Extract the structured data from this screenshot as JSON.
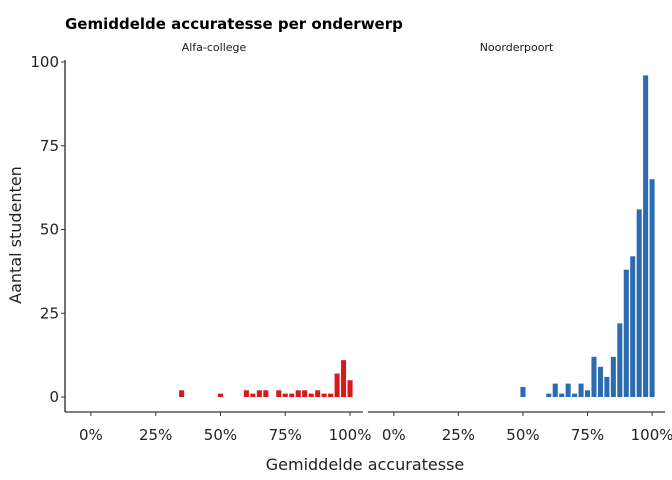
{
  "chart_data": {
    "type": "bar",
    "title": "Gemiddelde accuratesse per onderwerp",
    "xlabel": "Gemiddelde accuratesse",
    "ylabel": "Aantal studenten",
    "xlim": [
      -0.1,
      1.05
    ],
    "ylim": [
      0,
      100
    ],
    "x_ticks": [
      0,
      0.25,
      0.5,
      0.75,
      1.0
    ],
    "x_tick_labels": [
      "0%",
      "25%",
      "50%",
      "75%",
      "100%"
    ],
    "y_ticks": [
      0,
      25,
      50,
      75,
      100
    ],
    "y_tick_labels": [
      "0",
      "25",
      "50",
      "75",
      "100"
    ],
    "bin_width": 0.025,
    "grid": false,
    "legend": "none",
    "panels": [
      {
        "name": "Alfa-college",
        "color": "#d7191c",
        "bins": [
          {
            "x": 0.35,
            "y": 2
          },
          {
            "x": 0.5,
            "y": 1
          },
          {
            "x": 0.6,
            "y": 2
          },
          {
            "x": 0.625,
            "y": 1
          },
          {
            "x": 0.65,
            "y": 2
          },
          {
            "x": 0.675,
            "y": 2
          },
          {
            "x": 0.725,
            "y": 2
          },
          {
            "x": 0.75,
            "y": 1
          },
          {
            "x": 0.775,
            "y": 1
          },
          {
            "x": 0.8,
            "y": 2
          },
          {
            "x": 0.825,
            "y": 2
          },
          {
            "x": 0.85,
            "y": 1
          },
          {
            "x": 0.875,
            "y": 2
          },
          {
            "x": 0.9,
            "y": 1
          },
          {
            "x": 0.925,
            "y": 1
          },
          {
            "x": 0.95,
            "y": 7
          },
          {
            "x": 0.975,
            "y": 11
          },
          {
            "x": 1.0,
            "y": 5
          }
        ]
      },
      {
        "name": "Noorderpoort",
        "color": "#2b6cb0",
        "bins": [
          {
            "x": 0.5,
            "y": 3
          },
          {
            "x": 0.6,
            "y": 1
          },
          {
            "x": 0.625,
            "y": 4
          },
          {
            "x": 0.65,
            "y": 1
          },
          {
            "x": 0.675,
            "y": 4
          },
          {
            "x": 0.7,
            "y": 1
          },
          {
            "x": 0.725,
            "y": 4
          },
          {
            "x": 0.75,
            "y": 2
          },
          {
            "x": 0.775,
            "y": 12
          },
          {
            "x": 0.8,
            "y": 9
          },
          {
            "x": 0.825,
            "y": 6
          },
          {
            "x": 0.85,
            "y": 12
          },
          {
            "x": 0.875,
            "y": 22
          },
          {
            "x": 0.9,
            "y": 38
          },
          {
            "x": 0.925,
            "y": 42
          },
          {
            "x": 0.95,
            "y": 56
          },
          {
            "x": 0.975,
            "y": 96
          },
          {
            "x": 1.0,
            "y": 65
          }
        ]
      }
    ]
  }
}
